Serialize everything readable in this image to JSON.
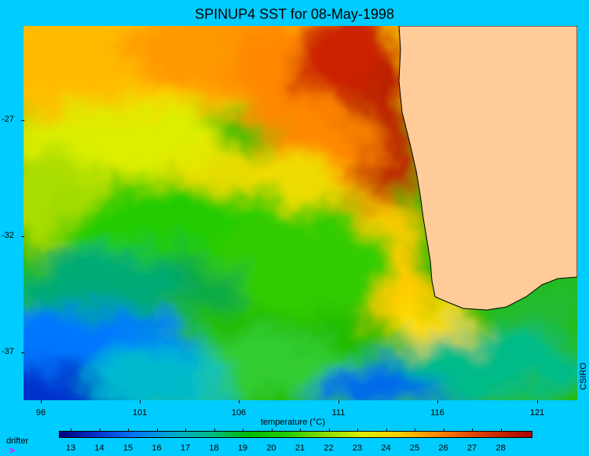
{
  "title": "SPINUP4 SST for 08-May-1998",
  "y_ticks": [
    "-27",
    "-32",
    "-37"
  ],
  "x_ticks": [
    "96",
    "101",
    "106",
    "111",
    "116",
    "121"
  ],
  "colorbar_title": "temperature (°C)",
  "colorbar_ticks": [
    "13",
    "14",
    "15",
    "16",
    "17",
    "18",
    "19",
    "20",
    "21",
    "22",
    "23",
    "24",
    "25",
    "26",
    "27",
    "28"
  ],
  "legend": {
    "marker": ">",
    "label": "drifter"
  },
  "credit": "CSIRO",
  "colors": {
    "background": "#00ccff",
    "land": "#ffcc99",
    "marker": "#ff00ff"
  }
}
